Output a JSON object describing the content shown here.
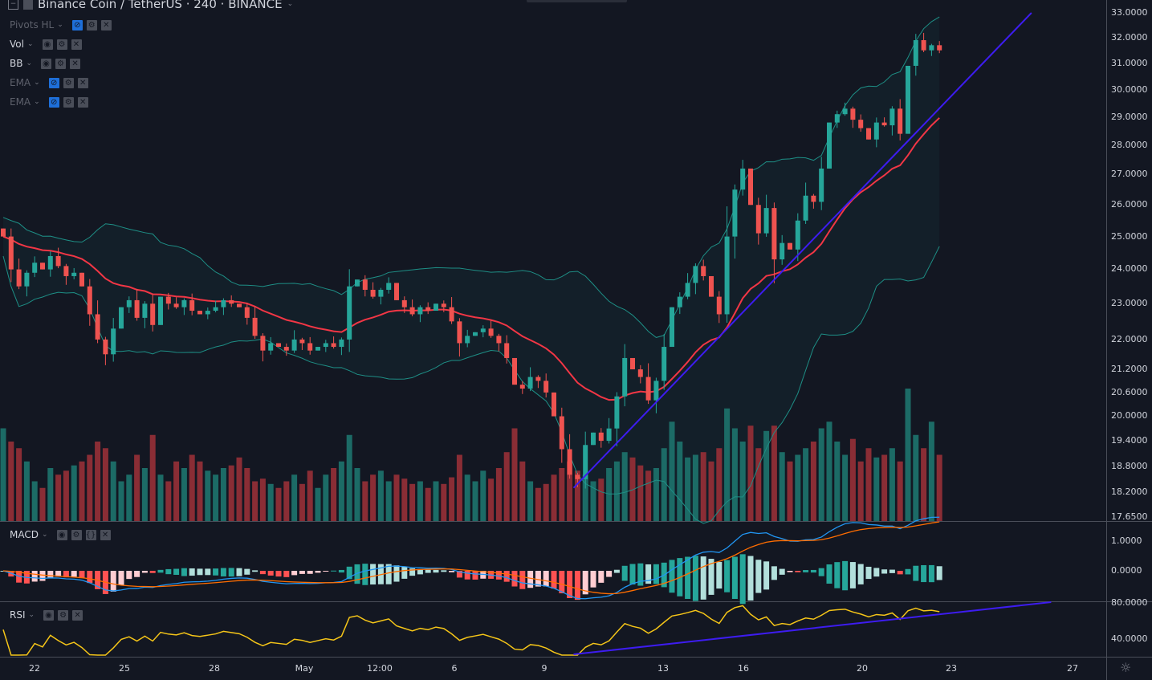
{
  "header": {
    "symbol_title": "Binance Coin / TetherUS · 240 · BINANCE"
  },
  "indicators": [
    {
      "label": "Pivots HL",
      "hidden": true
    },
    {
      "label": "Vol",
      "hidden": false
    },
    {
      "label": "BB",
      "hidden": false
    },
    {
      "label": "EMA",
      "hidden": true
    },
    {
      "label": "EMA",
      "hidden": true
    }
  ],
  "macd": {
    "label": "MACD"
  },
  "rsi": {
    "label": "RSI"
  },
  "colors": {
    "background": "#131722",
    "up": "#26a69a",
    "down": "#ef5350",
    "ema": "#f23645",
    "bb": "#1e8f86",
    "trendline": "#3d1cf0",
    "macd": "#2196f3",
    "signal": "#ff6d00",
    "rsi": "#f5c518"
  },
  "chart_data": {
    "type": "candlestick",
    "scale": "log",
    "price_axis_ticks": [
      "33.0000",
      "32.0000",
      "31.0000",
      "30.0000",
      "29.0000",
      "28.0000",
      "27.0000",
      "26.0000",
      "25.0000",
      "24.0000",
      "23.0000",
      "22.0000",
      "21.2000",
      "20.6000",
      "20.0000",
      "19.4000",
      "18.8000",
      "18.2000",
      "17.6500"
    ],
    "macd_axis_ticks": [
      "1.0000",
      "0.0000"
    ],
    "rsi_axis_ticks": [
      "80.0000",
      "40.0000"
    ],
    "time_ticks": [
      "22",
      "25",
      "28",
      "May",
      "12:00",
      "6",
      "9",
      "13",
      "16",
      "20",
      "23",
      "27"
    ],
    "ylim": [
      17.65,
      33.0
    ],
    "closes": [
      25.0,
      24.0,
      23.5,
      23.9,
      24.2,
      24.0,
      24.4,
      24.1,
      23.8,
      23.9,
      23.5,
      22.7,
      22.0,
      21.6,
      22.3,
      22.9,
      23.1,
      22.6,
      23.0,
      22.4,
      23.2,
      23.0,
      22.9,
      23.1,
      22.8,
      22.7,
      22.8,
      22.9,
      23.1,
      23.0,
      22.9,
      22.6,
      22.1,
      21.7,
      21.9,
      21.8,
      21.7,
      22.0,
      21.9,
      21.7,
      21.8,
      21.9,
      21.8,
      22.0,
      23.5,
      23.7,
      23.4,
      23.2,
      23.4,
      23.6,
      23.1,
      22.9,
      22.7,
      22.9,
      22.8,
      23.0,
      22.9,
      22.5,
      21.9,
      22.1,
      22.2,
      22.3,
      22.1,
      21.9,
      21.5,
      20.8,
      20.7,
      21.0,
      20.9,
      20.6,
      20.0,
      19.2,
      18.6,
      18.5,
      19.3,
      19.6,
      19.4,
      19.7,
      20.5,
      21.5,
      21.2,
      21.0,
      20.4,
      20.9,
      21.8,
      22.9,
      23.2,
      23.6,
      24.1,
      23.8,
      23.2,
      22.7,
      25.0,
      26.5,
      27.2,
      26.0,
      25.1,
      25.9,
      24.3,
      24.8,
      24.6,
      25.5,
      26.3,
      26.1,
      27.2,
      28.8,
      29.1,
      29.3,
      28.9,
      28.6,
      28.2,
      28.8,
      28.7,
      29.3,
      28.4,
      30.9,
      31.9,
      31.5,
      31.7,
      31.5
    ],
    "volumes": [
      70,
      60,
      55,
      45,
      30,
      25,
      40,
      35,
      38,
      42,
      45,
      50,
      60,
      55,
      45,
      30,
      35,
      50,
      40,
      65,
      35,
      30,
      45,
      40,
      50,
      45,
      38,
      35,
      40,
      42,
      48,
      40,
      30,
      32,
      28,
      25,
      30,
      35,
      28,
      38,
      25,
      35,
      40,
      45,
      65,
      40,
      30,
      35,
      38,
      30,
      35,
      32,
      28,
      30,
      25,
      30,
      28,
      33,
      50,
      35,
      30,
      38,
      32,
      40,
      52,
      70,
      45,
      30,
      25,
      28,
      35,
      40,
      45,
      38,
      35,
      30,
      32,
      40,
      45,
      52,
      48,
      42,
      38,
      40,
      55,
      75,
      60,
      48,
      50,
      52,
      45,
      55,
      85,
      70,
      60,
      72,
      55,
      68,
      72,
      52,
      45,
      50,
      55,
      60,
      70,
      75,
      60,
      50,
      62,
      45,
      55,
      48,
      50,
      55,
      45,
      100,
      65,
      55,
      75,
      50
    ],
    "price_trendline": {
      "from": {
        "candle": 72.5,
        "price": 18.3
      },
      "to": {
        "candle": 130.7,
        "price": 33.0
      }
    },
    "rsi_trendline": {
      "from": {
        "candle": 72.5,
        "value": 26
      },
      "to": {
        "candle": 133.2,
        "value": 80
      }
    }
  }
}
